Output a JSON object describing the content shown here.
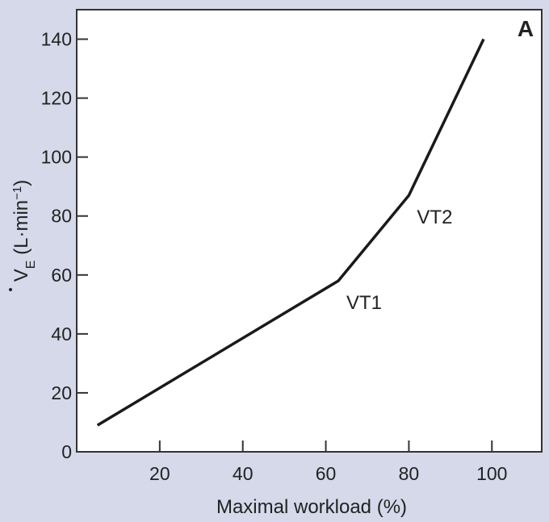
{
  "chart_data": {
    "type": "line",
    "panel_label": "A",
    "title": "",
    "xlabel": "Maximal workload (%)",
    "ylabel": {
      "symbol": "V",
      "subscript": "E",
      "units_open": " (L·min",
      "units_sup": "−1",
      "units_close": ")"
    },
    "xlim": [
      0,
      112
    ],
    "ylim": [
      0,
      150
    ],
    "xticks": [
      20,
      40,
      60,
      80,
      100
    ],
    "yticks": [
      0,
      20,
      40,
      60,
      80,
      100,
      120,
      140
    ],
    "grid": false,
    "series": [
      {
        "name": "VE",
        "color": "#1a1a1a",
        "x": [
          5,
          63,
          80,
          98
        ],
        "y": [
          9,
          58,
          87,
          140
        ]
      }
    ],
    "annotations": [
      {
        "text": "VT1",
        "x": 63,
        "y": 58
      },
      {
        "text": "VT2",
        "x": 80,
        "y": 87
      }
    ]
  },
  "colors": {
    "outer_background": "#d5d9ea",
    "plot_background": "#ffffff",
    "axis": "#333333",
    "line": "#1a1a1a"
  }
}
